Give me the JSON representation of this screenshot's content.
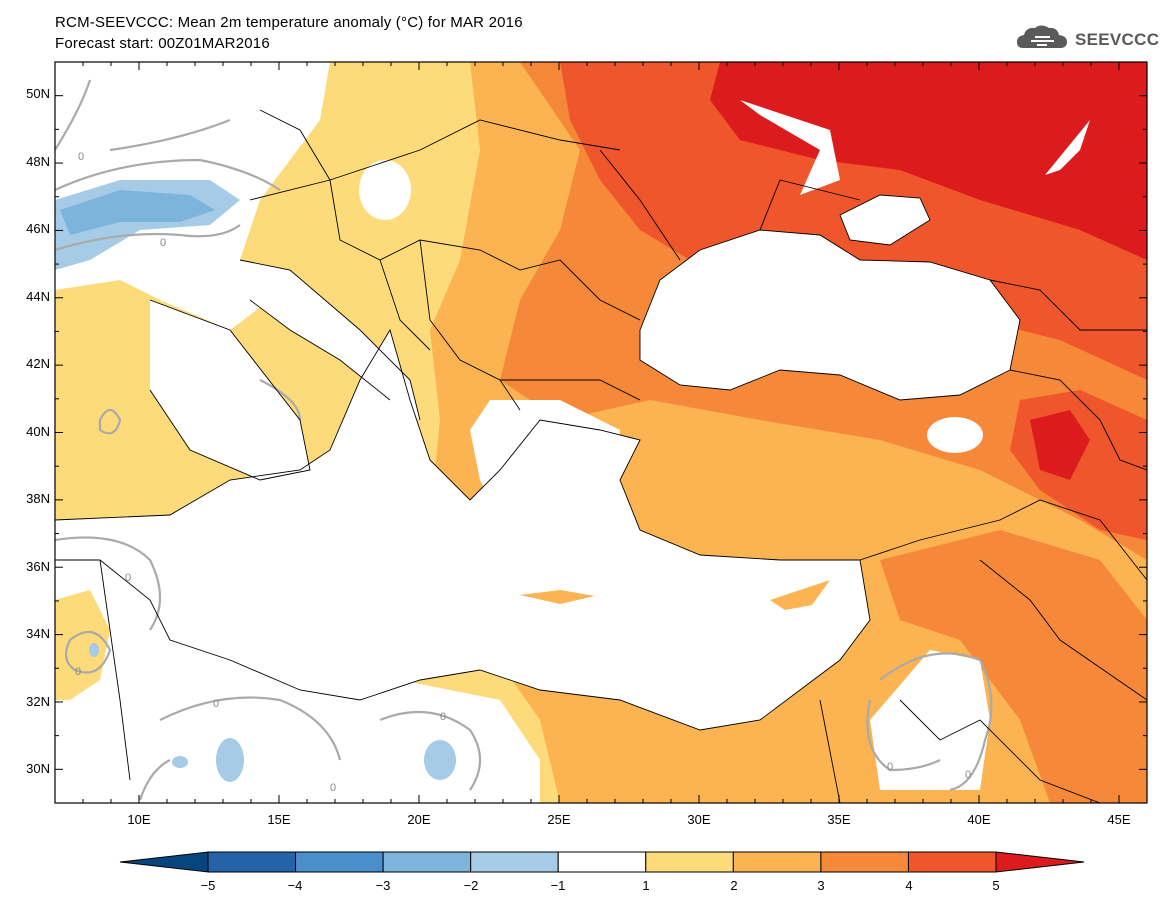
{
  "header": {
    "title": "RCM-SEEVCCC: Mean 2m temperature anomaly (°C) for MAR 2016",
    "subtitle": "Forecast start: 00Z01MAR2016",
    "logo_text": "SEEVCCC"
  },
  "map": {
    "projection": "lat-lon",
    "lon_range": [
      7,
      46
    ],
    "lat_range": [
      29,
      51
    ],
    "lat_labels": [
      "50N",
      "48N",
      "46N",
      "44N",
      "42N",
      "40N",
      "38N",
      "36N",
      "34N",
      "32N",
      "30N"
    ],
    "lon_labels": [
      "10E",
      "15E",
      "20E",
      "25E",
      "30E",
      "35E",
      "40E",
      "45E"
    ],
    "sea_fill": "#ffffff",
    "contour_color": "#aaaaaa",
    "contour_labels": [
      "0",
      "0",
      "0",
      "0",
      "0",
      "0",
      "0",
      "0",
      "0"
    ]
  },
  "colorbar": {
    "ticks": [
      "−5",
      "−4",
      "−3",
      "−2",
      "−1",
      "1",
      "2",
      "3",
      "4",
      "5"
    ],
    "colors": [
      "#08457f",
      "#2563a8",
      "#4a8fcb",
      "#7db4dc",
      "#a6cbe6",
      "#ffffff",
      "#fddb7a",
      "#fbb451",
      "#f6883a",
      "#f0562c",
      "#dc1c1c"
    ]
  }
}
